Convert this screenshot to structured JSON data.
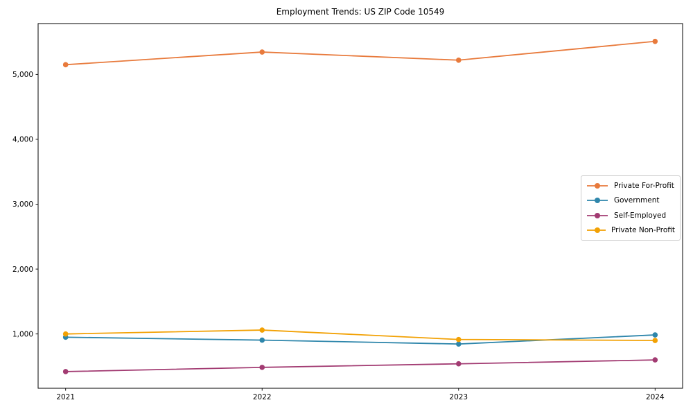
{
  "figure": {
    "background": "#ffffff",
    "axes_color": "#000000",
    "legend_border_color": "#cccccc"
  },
  "chart_data": {
    "type": "line",
    "title": "Employment Trends: US ZIP Code 10549",
    "xlabel": "",
    "ylabel": "",
    "grid": false,
    "legend_position": "center-right",
    "x": [
      2021,
      2022,
      2023,
      2024
    ],
    "x_tick_labels": [
      "2021",
      "2022",
      "2023",
      "2024"
    ],
    "yticks": [
      1000,
      2000,
      3000,
      4000,
      5000
    ],
    "ytick_labels": [
      "1,000",
      "2,000",
      "3,000",
      "4,000",
      "5,000"
    ],
    "xlim": [
      2020.86,
      2024.14
    ],
    "ylim": [
      163,
      5784
    ],
    "series": [
      {
        "name": "Private For-Profit",
        "color": "#E87A3C",
        "values": [
          5150,
          5345,
          5220,
          5510
        ]
      },
      {
        "name": "Government",
        "color": "#2E86AB",
        "values": [
          950,
          905,
          845,
          985
        ]
      },
      {
        "name": "Self-Employed",
        "color": "#A23B72",
        "values": [
          420,
          485,
          540,
          600
        ]
      },
      {
        "name": "Private Non-Profit",
        "color": "#F2A104",
        "values": [
          1000,
          1060,
          915,
          900
        ]
      }
    ]
  }
}
